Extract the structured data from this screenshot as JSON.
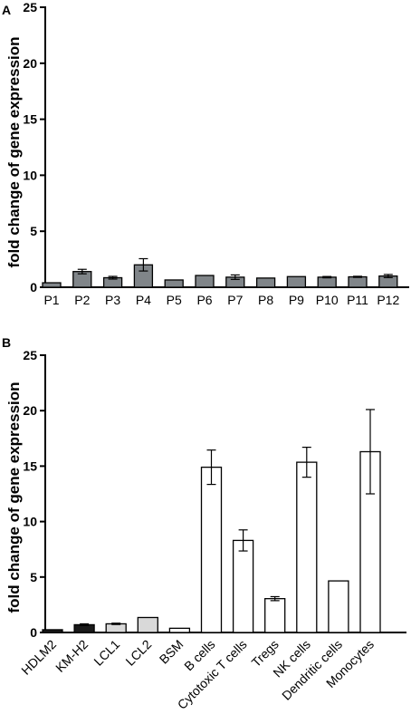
{
  "chart_data": [
    {
      "panel": "A",
      "type": "bar",
      "title": "",
      "xlabel": "",
      "ylabel": "fold change of gene expression",
      "ylim": [
        0,
        25
      ],
      "yticks": [
        0,
        5,
        10,
        15,
        20,
        25
      ],
      "categories": [
        "P1",
        "P2",
        "P3",
        "P4",
        "P5",
        "P6",
        "P7",
        "P8",
        "P9",
        "P10",
        "P11",
        "P12"
      ],
      "values": [
        0.4,
        1.4,
        0.85,
        2.0,
        0.65,
        1.05,
        0.9,
        0.82,
        0.95,
        0.9,
        0.93,
        1.0
      ],
      "errors": [
        0,
        0.2,
        0.12,
        0.55,
        0,
        0,
        0.2,
        0,
        0,
        0.06,
        0.05,
        0.14
      ],
      "bar_colors": [
        "#808589",
        "#808589",
        "#808589",
        "#808589",
        "#808589",
        "#808589",
        "#808589",
        "#808589",
        "#808589",
        "#808589",
        "#808589",
        "#808589"
      ],
      "grid": false
    },
    {
      "panel": "B",
      "type": "bar",
      "title": "",
      "xlabel": "",
      "ylabel": "fold change of gene expression",
      "ylim": [
        0,
        25
      ],
      "yticks": [
        0,
        5,
        10,
        15,
        20,
        25
      ],
      "categories": [
        "HDLM2",
        "KM-H2",
        "LCL1",
        "LCL2",
        "BSM",
        "B cells",
        "Cytotoxic T cells",
        "Tregs",
        "NK cells",
        "Dendritic cells",
        "Monocytes"
      ],
      "values": [
        0.25,
        0.7,
        0.78,
        1.35,
        0.38,
        14.9,
        8.3,
        3.05,
        15.35,
        4.65,
        16.3
      ],
      "errors": [
        0,
        0.08,
        0.06,
        0,
        0,
        1.55,
        0.95,
        0.18,
        1.35,
        0,
        3.8
      ],
      "bar_colors": [
        "#1a1a1a",
        "#1a1a1a",
        "#d9d9d9",
        "#d9d9d9",
        "#ffffff",
        "#ffffff",
        "#ffffff",
        "#ffffff",
        "#ffffff",
        "#ffffff",
        "#ffffff"
      ],
      "grid": false
    }
  ]
}
